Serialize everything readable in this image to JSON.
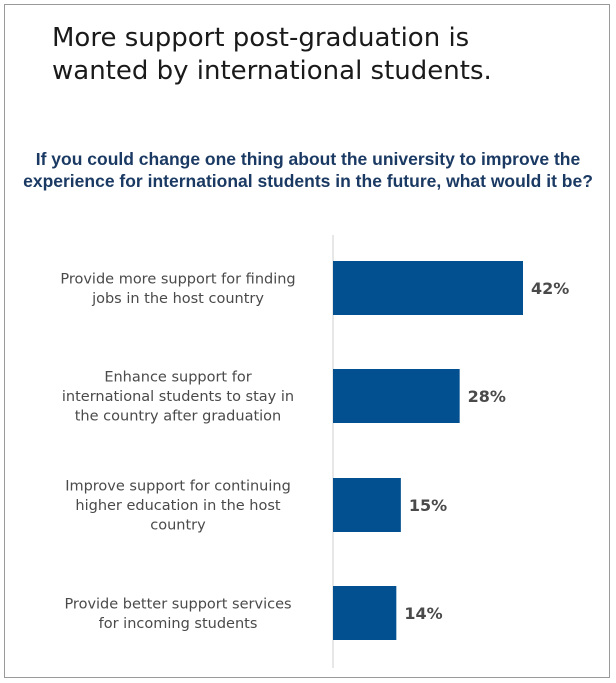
{
  "title": "More support post-graduation is wanted by international students.",
  "chart_data": {
    "type": "bar",
    "orientation": "horizontal",
    "title": "If you could change one thing about the university to improve the experience for international students in the future, what would it be?",
    "categories": [
      [
        "Provide more support for finding",
        "jobs in the host country"
      ],
      [
        "Enhance support for",
        "international students to stay in",
        "the country after graduation"
      ],
      [
        "Improve support for continuing",
        "higher education in the host",
        "country"
      ],
      [
        "Provide better support services",
        "for incoming students"
      ]
    ],
    "values": [
      42,
      28,
      15,
      14
    ],
    "value_labels": [
      "42%",
      "28%",
      "15%",
      "14%"
    ],
    "unit": "%",
    "bar_color": "#02508f",
    "xlabel": "",
    "ylabel": "",
    "grid": false,
    "legend": "none"
  }
}
